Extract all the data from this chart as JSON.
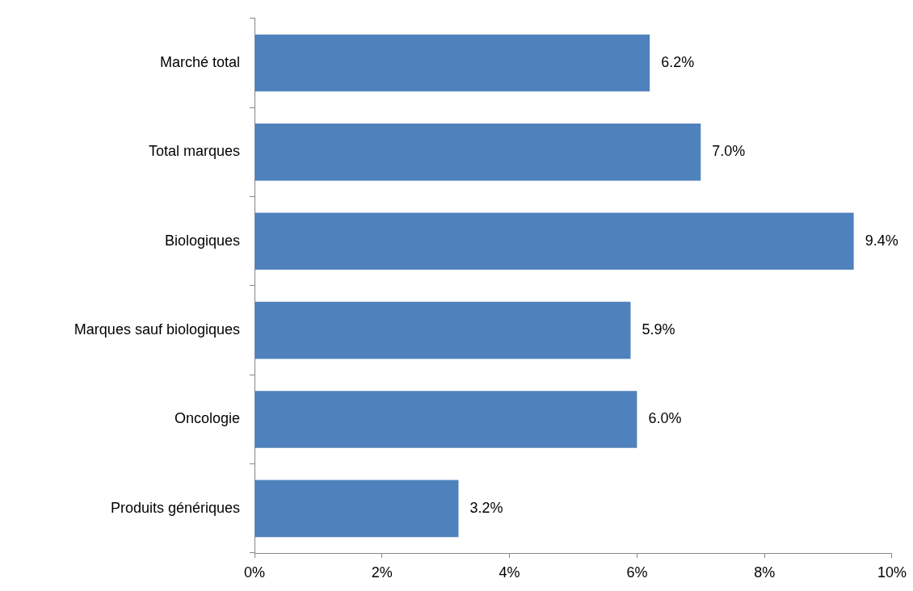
{
  "chart_data": {
    "type": "bar",
    "orientation": "horizontal",
    "categories": [
      "Marché total",
      "Total marques",
      "Biologiques",
      "Marques sauf biologiques",
      "Oncologie",
      "Produits génériques"
    ],
    "values": [
      6.2,
      7.0,
      9.4,
      5.9,
      6.0,
      3.2
    ],
    "value_labels": [
      "6.2%",
      "7.0%",
      "9.4%",
      "5.9%",
      "6.0%",
      "3.2%"
    ],
    "color": "#4f81bd",
    "xlim": [
      0,
      10
    ],
    "xticks": [
      {
        "value": 0,
        "label": "0%"
      },
      {
        "value": 2,
        "label": "2%"
      },
      {
        "value": 4,
        "label": "4%"
      },
      {
        "value": 6,
        "label": "6%"
      },
      {
        "value": 8,
        "label": "8%"
      },
      {
        "value": 10,
        "label": "10%"
      }
    ],
    "grid": false,
    "legend": false
  }
}
